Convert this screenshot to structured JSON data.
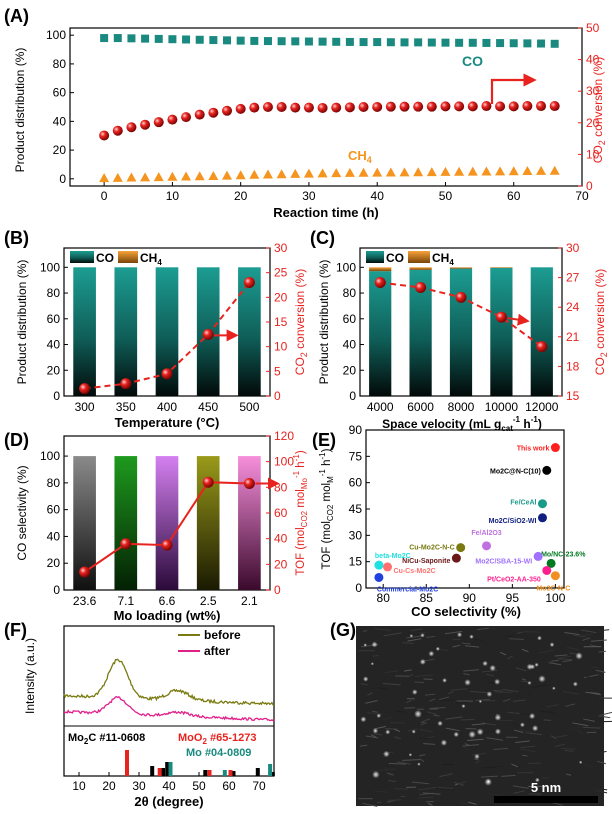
{
  "colors": {
    "teal": "#1a8a80",
    "orange": "#f5941e",
    "red": "#e8231f",
    "axis_red": "#e8231f",
    "black": "#000000"
  },
  "chart_data": [
    {
      "panel": "(A)",
      "type": "scatter",
      "xlabel": "Reaction time (h)",
      "ylabel_left": "Product distribution (%)",
      "ylabel_right": "CO2 conversion (%)",
      "xlim": [
        -5,
        70
      ],
      "ylim_left": [
        -5,
        105
      ],
      "ylim_right": [
        0,
        50
      ],
      "xticks": [
        0,
        10,
        20,
        30,
        40,
        50,
        60,
        70
      ],
      "yticks_left": [
        0,
        20,
        40,
        60,
        80,
        100
      ],
      "yticks_right": [
        0,
        10,
        20,
        30,
        40,
        50
      ],
      "x": [
        0,
        2,
        4,
        6,
        8,
        10,
        12,
        14,
        16,
        18,
        20,
        22,
        24,
        26,
        28,
        30,
        32,
        34,
        36,
        38,
        40,
        42,
        44,
        46,
        48,
        50,
        52,
        54,
        56,
        58,
        60,
        62,
        64,
        66
      ],
      "series": [
        {
          "name": "CO",
          "axis": "left",
          "marker": "square",
          "values": [
            98,
            98,
            97.8,
            97.6,
            97.4,
            97.2,
            97,
            96.8,
            96.6,
            96.4,
            96.2,
            96,
            95.9,
            95.8,
            95.7,
            95.6,
            95.5,
            95.4,
            95.3,
            95.2,
            95.2,
            95.1,
            95,
            95,
            94.9,
            94.8,
            94.7,
            94.7,
            94.6,
            94.5,
            94.4,
            94.3,
            94.2,
            94
          ]
        },
        {
          "name": "CH4",
          "axis": "left",
          "marker": "triangle",
          "values": [
            0.5,
            0.7,
            0.9,
            1,
            1.2,
            1.4,
            1.6,
            1.8,
            2,
            2.2,
            2.5,
            2.8,
            3,
            3.2,
            3.4,
            3.6,
            3.8,
            4,
            4.1,
            4.2,
            4.3,
            4.4,
            4.5,
            4.6,
            4.7,
            4.8,
            4.9,
            5,
            5.1,
            5.2,
            5.3,
            5.4,
            5.5,
            5.6
          ]
        },
        {
          "name": "CO2 conversion",
          "axis": "right",
          "marker": "sphere",
          "values": [
            16,
            17.5,
            18.6,
            19.4,
            20.2,
            21,
            21.8,
            22.6,
            23.2,
            23.8,
            24.4,
            24.8,
            25,
            25,
            24.8,
            24.8,
            24.7,
            24.8,
            24.9,
            25,
            25,
            25.1,
            25.1,
            25.1,
            25.1,
            25.2,
            25.2,
            25.2,
            25.3,
            25.2,
            25.2,
            25.3,
            25.3,
            25.3
          ]
        }
      ],
      "annotations": [
        "CO",
        "CH4"
      ]
    },
    {
      "panel": "(B)",
      "type": "bar",
      "xlabel": "Temperature (°C)",
      "ylabel_left": "Product distribution (%)",
      "ylabel_right": "CO2 conversion (%)",
      "categories": [
        "300",
        "350",
        "400",
        "450",
        "500"
      ],
      "ylim_left": [
        0,
        115
      ],
      "ylim_right": [
        0,
        30
      ],
      "yticks_left": [
        0,
        20,
        40,
        60,
        80,
        100
      ],
      "yticks_right": [
        0,
        5,
        10,
        15,
        20,
        25,
        30
      ],
      "series": [
        {
          "name": "CO",
          "values": [
            100,
            100,
            100,
            100,
            100
          ]
        },
        {
          "name": "CH4",
          "values": [
            0,
            0,
            0,
            0,
            0
          ]
        },
        {
          "name": "CO2 conversion",
          "axis": "right",
          "values": [
            1.5,
            2.5,
            4.5,
            12.5,
            23
          ]
        }
      ],
      "legend": [
        "CO",
        "CH4"
      ]
    },
    {
      "panel": "(C)",
      "type": "bar",
      "xlabel": "Space velocity (mL g",
      "xlabel_sub": "cat",
      "xlabel_sup": "-1",
      "xlabel_tail": " h",
      "xlabel_sup2": "-1",
      "xlabel_end": ")",
      "ylabel_left": "Product distribution (%)",
      "ylabel_right": "CO2 conversion (%)",
      "categories": [
        "4000",
        "6000",
        "8000",
        "10000",
        "12000"
      ],
      "ylim_left": [
        0,
        115
      ],
      "ylim_right": [
        15,
        30
      ],
      "yticks_left": [
        0,
        20,
        40,
        60,
        80,
        100
      ],
      "yticks_right": [
        15,
        18,
        21,
        24,
        27,
        30
      ],
      "series": [
        {
          "name": "CO",
          "values": [
            97,
            98,
            99,
            99.5,
            100
          ]
        },
        {
          "name": "CH4",
          "values": [
            3,
            2,
            1,
            0.5,
            0
          ]
        },
        {
          "name": "CO2 conversion",
          "axis": "right",
          "values": [
            26.5,
            26,
            25,
            23,
            20
          ]
        }
      ],
      "legend": [
        "CO",
        "CH4"
      ]
    },
    {
      "panel": "(D)",
      "type": "bar",
      "xlabel": "Mo loading (wt%)",
      "ylabel_left": "CO selectivity (%)",
      "ylabel_right": "TOF (mol CO2 mol Mo -1 h -1)",
      "categories": [
        "23.6",
        "7.1",
        "6.6",
        "2.5",
        "2.1"
      ],
      "ylim_left": [
        0,
        115
      ],
      "ylim_right": [
        0,
        120
      ],
      "yticks_left": [
        0,
        20,
        40,
        60,
        80,
        100
      ],
      "yticks_right": [
        0,
        20,
        40,
        60,
        80,
        100,
        120
      ],
      "bar_colors": [
        "#7a7a7a",
        "#1e8a1e",
        "#c66fe6",
        "#8a8a14",
        "#ef7fcf"
      ],
      "series": [
        {
          "name": "CO selectivity",
          "values": [
            100,
            100,
            100,
            100,
            100
          ]
        },
        {
          "name": "TOF",
          "axis": "right",
          "values": [
            14,
            36,
            35,
            84,
            83
          ]
        }
      ]
    },
    {
      "panel": "(E)",
      "type": "scatter",
      "xlabel": "CO selectivity (%)",
      "ylabel": "TOF (mol CO2 mol M -1 h -1)",
      "xlim": [
        78,
        101
      ],
      "ylim": [
        0,
        90
      ],
      "xticks": [
        80,
        85,
        90,
        95,
        100
      ],
      "yticks": [
        0,
        15,
        30,
        45,
        60,
        75,
        90
      ],
      "points": [
        {
          "label": "This work",
          "x": 100,
          "y": 80,
          "color": "#ff1e1e"
        },
        {
          "label": "Mo2C@N-C(10)",
          "x": 99,
          "y": 67,
          "color": "#000000"
        },
        {
          "label": "Fe/CeAl",
          "x": 98.5,
          "y": 48,
          "color": "#1a9a8a"
        },
        {
          "label": "Mo2C/SiO2-WI",
          "x": 98.5,
          "y": 40,
          "color": "#102080"
        },
        {
          "label": "Fe/Al2O3",
          "x": 92,
          "y": 24,
          "color": "#c070e0"
        },
        {
          "label": "Cu-Mo2C-N-C",
          "x": 89,
          "y": 23,
          "color": "#7a7a10"
        },
        {
          "label": "Mo/NC-23.6%",
          "x": 99.5,
          "y": 14,
          "color": "#007a20"
        },
        {
          "label": "NiCu-Saponite",
          "x": 88.5,
          "y": 17,
          "color": "#6a1818"
        },
        {
          "label": "Mo2C/SBA-15-WI",
          "x": 98,
          "y": 18,
          "color": "#a070ff"
        },
        {
          "label": "beta-Mo2C",
          "x": 79.5,
          "y": 13,
          "color": "#20e0e0"
        },
        {
          "label": "Cu-Cs-Mo2C",
          "x": 80.5,
          "y": 12,
          "color": "#ff7070"
        },
        {
          "label": "Pt/CeO2-AA-350",
          "x": 99,
          "y": 10,
          "color": "#ff2090"
        },
        {
          "label": "Mo2C-N-C",
          "x": 100,
          "y": 7,
          "color": "#f09020"
        },
        {
          "label": "Commercial-Mo2C",
          "x": 79.5,
          "y": 6,
          "color": "#2040e0"
        }
      ]
    },
    {
      "panel": "(F)",
      "type": "line",
      "xlabel": "2θ (degree)",
      "ylabel": "Intensity (a.u.)",
      "xlim": [
        5,
        75
      ],
      "xticks": [
        10,
        20,
        30,
        40,
        50,
        60,
        70
      ],
      "series": [
        {
          "name": "before",
          "color": "#7a7a10"
        },
        {
          "name": "after",
          "color": "#e0208a"
        }
      ],
      "references": [
        {
          "name": "Mo2C #11-0608",
          "color": "#000000",
          "peaks": [
            34.4,
            38.0,
            39.4,
            52.1,
            61.5,
            69.6,
            74.6
          ]
        },
        {
          "name": "MoO2 #65-1273",
          "color": "#e8231f",
          "peaks": [
            26.0,
            36.9,
            53.5,
            60.5
          ]
        },
        {
          "name": "Mo #04-0809",
          "color": "#1a8a80",
          "peaks": [
            40.5,
            58.6,
            73.7
          ]
        }
      ]
    }
  ],
  "panels": {
    "A": {
      "label": "(A)",
      "co": "CO",
      "ch4": "CH",
      "ch4_sub": "4"
    },
    "B": {
      "label": "(B)"
    },
    "C": {
      "label": "(C)"
    },
    "D": {
      "label": "(D)"
    },
    "E": {
      "label": "(E)"
    },
    "F": {
      "label": "(F)",
      "before": "before",
      "after": "after",
      "mo2c": "Mo",
      "mo2c_sub": "2",
      "mo2c_tail": "C #11-0608",
      "moo2": "MoO",
      "moo2_sub": "2",
      "moo2_tail": " #65-1273",
      "mo": "Mo #04-0809"
    },
    "G": {
      "label": "(G)",
      "scale": "5 nm"
    }
  },
  "axis_text": {
    "product_distribution": "Product distribution (%)",
    "co2_conv_a": "CO",
    "co2_conv_sub": "2",
    "co2_conv_b": " conversion (%)",
    "reaction_time": "Reaction time (h)",
    "temperature": "Temperature (°C)",
    "space_velocity_a": "Space velocity (mL g",
    "space_velocity_sub": "cat",
    "space_velocity_sup1": "-1",
    "space_velocity_b": " h",
    "space_velocity_sup2": "-1",
    "space_velocity_c": ")",
    "co_selectivity": "CO selectivity (%)",
    "mo_loading": "Mo loading (wt%)",
    "tof_a": "TOF (mol",
    "tof_sub1": "CO2",
    "tof_b": " mol",
    "tof_sub2": "Mo",
    "tof_sup": "-1",
    "tof_c": " h",
    "tof_sup2": "-1",
    "tof_d": ")",
    "tof_e_sub2": "M",
    "co_sel_x": "CO selectivity (%)",
    "two_theta": "2θ (degree)",
    "intensity": "Intensity (a.u.)"
  },
  "legend": {
    "co": "CO",
    "ch4": "CH",
    "ch4_sub": "4"
  }
}
